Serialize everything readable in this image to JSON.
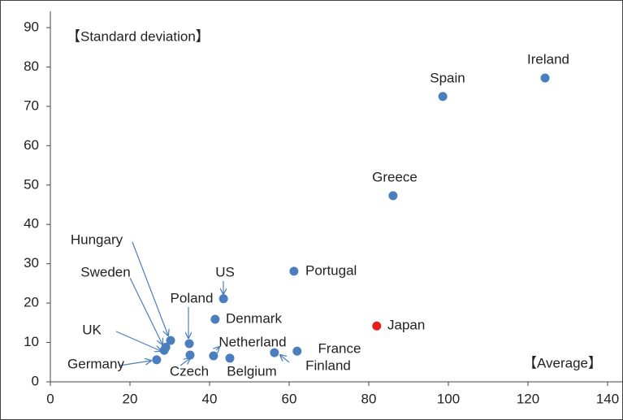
{
  "chart_data": {
    "type": "scatter",
    "y_label": "【Standard deviation】",
    "x_label": "【Average】",
    "xlim": [
      0,
      140
    ],
    "xticks": [
      0,
      20,
      40,
      60,
      80,
      100,
      120,
      140
    ],
    "ylim": [
      0,
      90
    ],
    "yticks": [
      0,
      10,
      20,
      30,
      40,
      50,
      60,
      70,
      80,
      90
    ],
    "points": [
      {
        "label": "Ireland",
        "x": 124.3,
        "y": 77.2,
        "color": "#4a7ebf"
      },
      {
        "label": "Spain",
        "x": 98.6,
        "y": 72.5,
        "color": "#4a7ebf"
      },
      {
        "label": "Greece",
        "x": 86.1,
        "y": 47.3,
        "color": "#4a7ebf"
      },
      {
        "label": "Portugal",
        "x": 61.2,
        "y": 28.1,
        "color": "#4a7ebf"
      },
      {
        "label": "Japan",
        "x": 82.0,
        "y": 14.2,
        "color": "#e3201b"
      },
      {
        "label": "US",
        "x": 43.5,
        "y": 21.1,
        "color": "#4a7ebf"
      },
      {
        "label": "Denmark",
        "x": 41.4,
        "y": 15.9,
        "color": "#4a7ebf"
      },
      {
        "label": "Poland",
        "x": 34.9,
        "y": 9.7,
        "color": "#4a7ebf"
      },
      {
        "label": "Hungary",
        "x": 30.2,
        "y": 10.5,
        "color": "#4a7ebf"
      },
      {
        "label": "Sweden",
        "x": 29.0,
        "y": 8.8,
        "color": "#4a7ebf"
      },
      {
        "label": "UK",
        "x": 28.6,
        "y": 8.0,
        "color": "#4a7ebf"
      },
      {
        "label": "Germany",
        "x": 26.7,
        "y": 5.6,
        "color": "#4a7ebf"
      },
      {
        "label": "Czech",
        "x": 35.1,
        "y": 6.8,
        "color": "#4a7ebf"
      },
      {
        "label": "Netherland",
        "x": 41.0,
        "y": 6.6,
        "color": "#4a7ebf"
      },
      {
        "label": "Belgium",
        "x": 45.1,
        "y": 6.0,
        "color": "#4a7ebf"
      },
      {
        "label": "Finland",
        "x": 56.3,
        "y": 7.4,
        "color": "#4a7ebf"
      },
      {
        "label": "France",
        "x": 62.0,
        "y": 7.8,
        "color": "#4a7ebf"
      }
    ]
  }
}
